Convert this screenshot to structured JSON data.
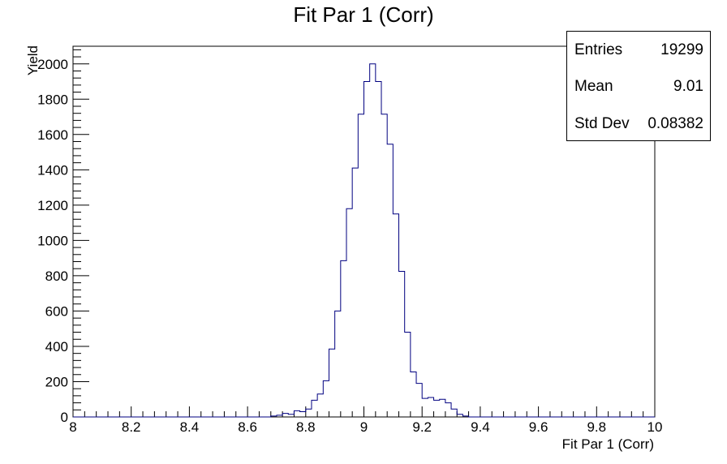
{
  "chart_data": {
    "type": "histogram",
    "title": "Fit Par 1 (Corr)",
    "xlabel": "Fit Par 1 (Corr)",
    "ylabel": "Yield",
    "xlim": [
      8,
      10
    ],
    "ylim": [
      0,
      2100
    ],
    "bin_width": 0.02,
    "x_ticks": [
      "8",
      "8.2",
      "8.4",
      "8.6",
      "8.8",
      "9",
      "9.2",
      "9.4",
      "9.6",
      "9.8",
      "10"
    ],
    "y_ticks": [
      "0",
      "200",
      "400",
      "600",
      "800",
      "1000",
      "1200",
      "1400",
      "1600",
      "1800",
      "2000"
    ],
    "line_color": "#000080",
    "grid": false,
    "legend": "none",
    "series": [
      {
        "bins": [
          {
            "x": 8.68,
            "y": 5
          },
          {
            "x": 8.7,
            "y": 10
          },
          {
            "x": 8.72,
            "y": 20
          },
          {
            "x": 8.74,
            "y": 15
          },
          {
            "x": 8.76,
            "y": 35
          },
          {
            "x": 8.78,
            "y": 30
          },
          {
            "x": 8.8,
            "y": 45
          },
          {
            "x": 8.82,
            "y": 95
          },
          {
            "x": 8.84,
            "y": 130
          },
          {
            "x": 8.86,
            "y": 205
          },
          {
            "x": 8.88,
            "y": 385
          },
          {
            "x": 8.9,
            "y": 600
          },
          {
            "x": 8.92,
            "y": 885
          },
          {
            "x": 8.94,
            "y": 1180
          },
          {
            "x": 8.96,
            "y": 1410
          },
          {
            "x": 8.98,
            "y": 1715
          },
          {
            "x": 9.0,
            "y": 1900
          },
          {
            "x": 9.02,
            "y": 2000
          },
          {
            "x": 9.04,
            "y": 1900
          },
          {
            "x": 9.06,
            "y": 1715
          },
          {
            "x": 9.08,
            "y": 1545
          },
          {
            "x": 9.1,
            "y": 1150
          },
          {
            "x": 9.12,
            "y": 825
          },
          {
            "x": 9.14,
            "y": 480
          },
          {
            "x": 9.16,
            "y": 255
          },
          {
            "x": 9.18,
            "y": 190
          },
          {
            "x": 9.2,
            "y": 105
          },
          {
            "x": 9.22,
            "y": 110
          },
          {
            "x": 9.24,
            "y": 95
          },
          {
            "x": 9.26,
            "y": 100
          },
          {
            "x": 9.28,
            "y": 80
          },
          {
            "x": 9.3,
            "y": 45
          },
          {
            "x": 9.32,
            "y": 15
          },
          {
            "x": 9.34,
            "y": 5
          }
        ]
      }
    ]
  },
  "stats": {
    "entries_label": "Entries",
    "entries_value": "19299",
    "mean_label": "Mean",
    "mean_value": "9.01",
    "stddev_label": "Std Dev",
    "stddev_value": "0.08382"
  }
}
